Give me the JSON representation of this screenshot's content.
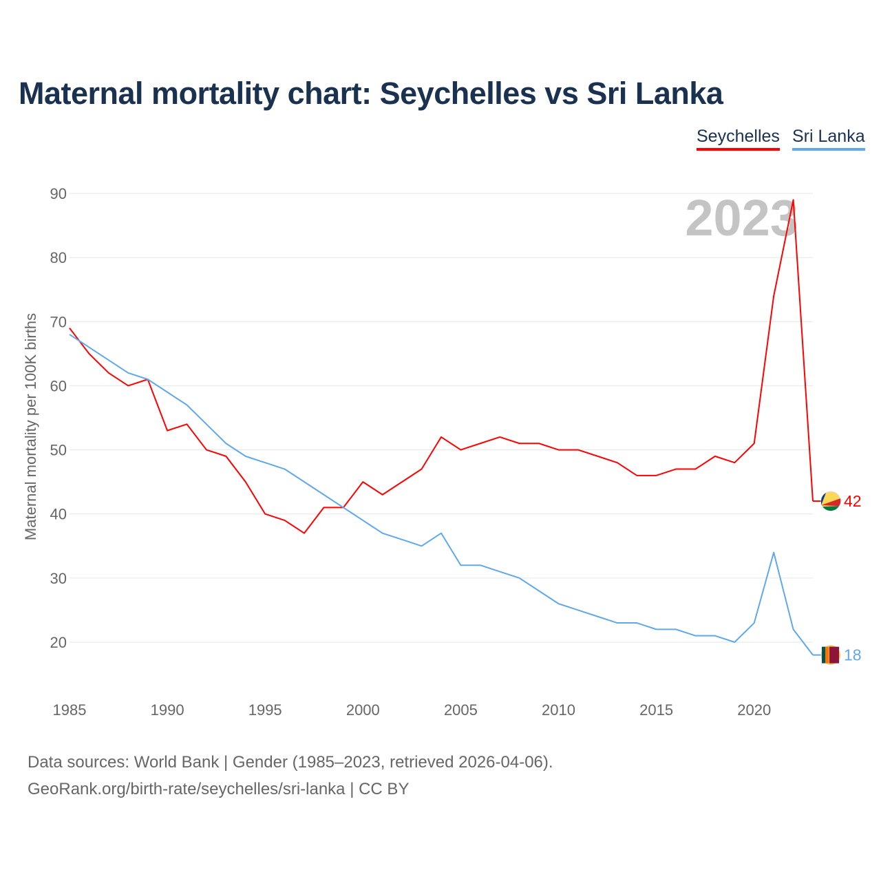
{
  "title": "Maternal mortality chart: Seychelles vs Sri Lanka",
  "footer": {
    "line1": "Data sources: World Bank | Gender (1985–2023, retrieved 2026-04-06).",
    "line2": "GeoRank.org/birth-rate/seychelles/sri-lanka | CC BY"
  },
  "chart_data": {
    "type": "line",
    "title": "Maternal mortality chart: Seychelles vs Sri Lanka",
    "xlabel": "",
    "ylabel": "Maternal mortality per 100K births",
    "year_watermark": "2023",
    "xlim": [
      1985,
      2023
    ],
    "ylim": [
      13,
      92
    ],
    "x_ticks": [
      1985,
      1990,
      1995,
      2000,
      2005,
      2010,
      2015,
      2020
    ],
    "y_ticks": [
      20,
      30,
      40,
      50,
      60,
      70,
      80,
      90
    ],
    "grid": true,
    "legend_position": "top-right",
    "x": [
      1985,
      1986,
      1987,
      1988,
      1989,
      1990,
      1991,
      1992,
      1993,
      1994,
      1995,
      1996,
      1997,
      1998,
      1999,
      2000,
      2001,
      2002,
      2003,
      2004,
      2005,
      2006,
      2007,
      2008,
      2009,
      2010,
      2011,
      2012,
      2013,
      2014,
      2015,
      2016,
      2017,
      2018,
      2019,
      2020,
      2021,
      2022,
      2023
    ],
    "series": [
      {
        "name": "Seychelles",
        "color": "#ff0000",
        "end_label": "42",
        "values": [
          69,
          65,
          62,
          60,
          61,
          53,
          54,
          50,
          49,
          45,
          40,
          39,
          37,
          41,
          41,
          45,
          43,
          45,
          47,
          52,
          50,
          51,
          52,
          51,
          51,
          50,
          50,
          49,
          48,
          46,
          46,
          47,
          47,
          49,
          48,
          51,
          74,
          89,
          42
        ]
      },
      {
        "name": "Sri Lanka",
        "color": "#5fa8ec",
        "end_label": "18",
        "values": [
          68,
          66,
          64,
          62,
          61,
          59,
          57,
          54,
          51,
          49,
          48,
          47,
          45,
          43,
          41,
          39,
          37,
          36,
          35,
          37,
          32,
          32,
          31,
          30,
          28,
          26,
          25,
          24,
          23,
          23,
          22,
          22,
          21,
          21,
          20,
          23,
          34,
          22,
          18
        ]
      }
    ]
  }
}
